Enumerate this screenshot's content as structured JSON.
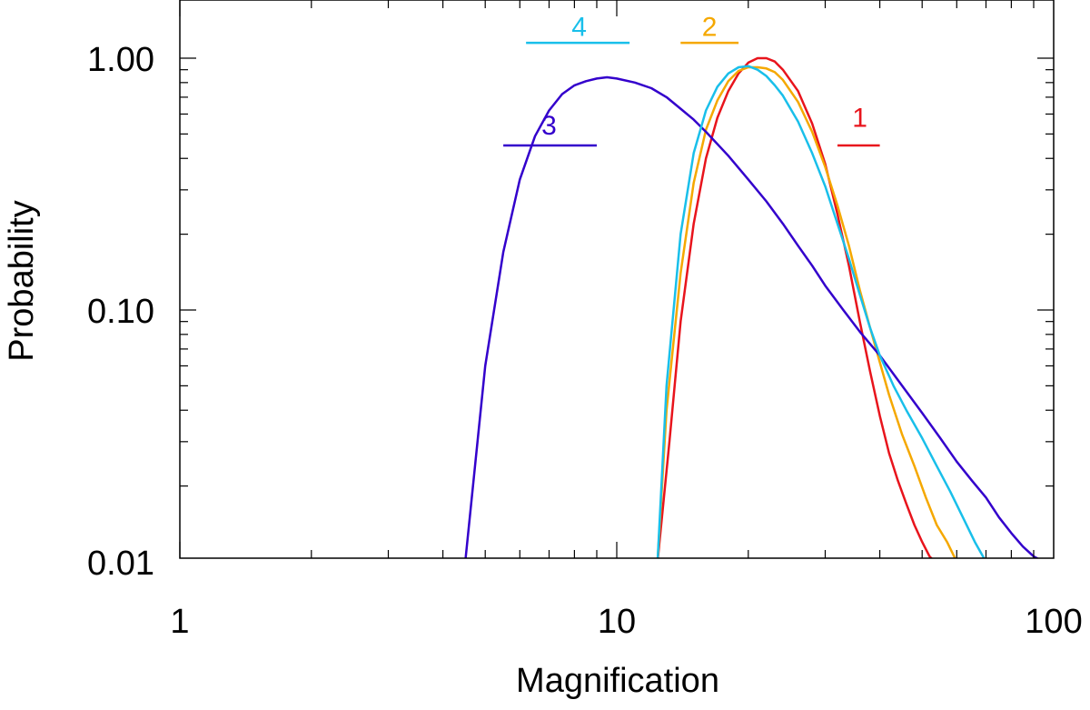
{
  "chart_data": {
    "type": "line",
    "xlabel": "Magnification",
    "ylabel": "Probability",
    "xscale": "log",
    "yscale": "log",
    "xlim": [
      1,
      100
    ],
    "ylim": [
      0.01,
      1.6
    ],
    "xticks": [
      {
        "value": 1,
        "label": "1"
      },
      {
        "value": 10,
        "label": "10"
      },
      {
        "value": 100,
        "label": "100"
      }
    ],
    "yticks": [
      {
        "value": 0.01,
        "label": "0.01"
      },
      {
        "value": 0.1,
        "label": "0.10"
      },
      {
        "value": 1,
        "label": "1.00"
      }
    ],
    "grid": false,
    "series": [
      {
        "name": "1",
        "color": "#e8141c",
        "x": [
          12.4,
          13.2,
          14.0,
          15.0,
          16.0,
          17.0,
          18.0,
          19.0,
          20.0,
          21.0,
          22.0,
          23.0,
          24.0,
          26.0,
          28.0,
          30.0,
          32.0,
          34.0,
          36.0,
          38.0,
          40.0,
          42.0,
          44.0,
          46.0,
          48.0,
          50.0,
          52.0,
          53.5
        ],
        "y": [
          0.01,
          0.03,
          0.09,
          0.22,
          0.4,
          0.58,
          0.74,
          0.87,
          0.96,
          1.0,
          1.0,
          0.97,
          0.9,
          0.74,
          0.55,
          0.38,
          0.24,
          0.15,
          0.09,
          0.057,
          0.038,
          0.027,
          0.021,
          0.017,
          0.014,
          0.012,
          0.0105,
          0.01
        ],
        "bracket": [
          32,
          40
        ],
        "bracket_y": 0.45,
        "label_x": 36,
        "label_y": 0.6
      },
      {
        "name": "2",
        "color": "#f5a800",
        "x": [
          12.4,
          13.0,
          14.0,
          15.0,
          16.0,
          17.0,
          18.0,
          19.0,
          20.0,
          21.0,
          22.0,
          23.0,
          24.0,
          26.0,
          28.0,
          30.0,
          32.0,
          34.0,
          36.0,
          38.0,
          40.0,
          42.0,
          45.0,
          48.0,
          51.0,
          54.0,
          57.0,
          60.0
        ],
        "y": [
          0.01,
          0.04,
          0.14,
          0.32,
          0.52,
          0.68,
          0.81,
          0.89,
          0.92,
          0.92,
          0.91,
          0.88,
          0.82,
          0.67,
          0.51,
          0.37,
          0.26,
          0.18,
          0.12,
          0.085,
          0.062,
          0.046,
          0.032,
          0.024,
          0.018,
          0.014,
          0.012,
          0.01
        ],
        "bracket": [
          14.0,
          19.0
        ],
        "bracket_y": 1.15,
        "label_x": 16.3,
        "label_y": 1.38
      },
      {
        "name": "3",
        "color": "#3300cc",
        "x": [
          4.5,
          5.0,
          5.5,
          6.0,
          6.5,
          7.0,
          7.5,
          8.0,
          8.5,
          9.0,
          9.5,
          10.0,
          11.0,
          12.0,
          13.0,
          14.0,
          15.0,
          16.0,
          18.0,
          20.0,
          22.0,
          24.0,
          26.0,
          28.0,
          30.0,
          33.0,
          36.0,
          40.0,
          45.0,
          50.0,
          55.0,
          60.0,
          65.0,
          70.0,
          75.0,
          80.0,
          85.0,
          90.0,
          95.0
        ],
        "y": [
          0.01,
          0.06,
          0.17,
          0.33,
          0.49,
          0.62,
          0.72,
          0.78,
          0.81,
          0.83,
          0.84,
          0.83,
          0.8,
          0.76,
          0.7,
          0.63,
          0.57,
          0.51,
          0.41,
          0.33,
          0.27,
          0.22,
          0.18,
          0.15,
          0.125,
          0.1,
          0.082,
          0.066,
          0.05,
          0.039,
          0.031,
          0.025,
          0.021,
          0.018,
          0.015,
          0.013,
          0.0115,
          0.0105,
          0.01
        ],
        "bracket": [
          5.5,
          9.0
        ],
        "bracket_y": 0.45,
        "label_x": 7.0,
        "label_y": 0.56
      },
      {
        "name": "4",
        "color": "#19bfea",
        "x": [
          12.4,
          13.0,
          14.0,
          15.0,
          16.0,
          17.0,
          18.0,
          19.0,
          20.0,
          21.0,
          22.0,
          23.0,
          24.0,
          26.0,
          28.0,
          30.0,
          32.0,
          34.0,
          36.0,
          38.0,
          40.0,
          43.0,
          46.0,
          50.0,
          54.0,
          58.0,
          62.0,
          66.0,
          70.0
        ],
        "y": [
          0.01,
          0.05,
          0.2,
          0.42,
          0.62,
          0.77,
          0.87,
          0.92,
          0.93,
          0.9,
          0.85,
          0.78,
          0.71,
          0.56,
          0.42,
          0.31,
          0.22,
          0.16,
          0.115,
          0.085,
          0.066,
          0.05,
          0.04,
          0.031,
          0.024,
          0.019,
          0.015,
          0.012,
          0.01
        ],
        "bracket": [
          6.2,
          10.7
        ],
        "bracket_y": 1.15,
        "label_x": 8.2,
        "label_y": 1.38
      }
    ]
  }
}
